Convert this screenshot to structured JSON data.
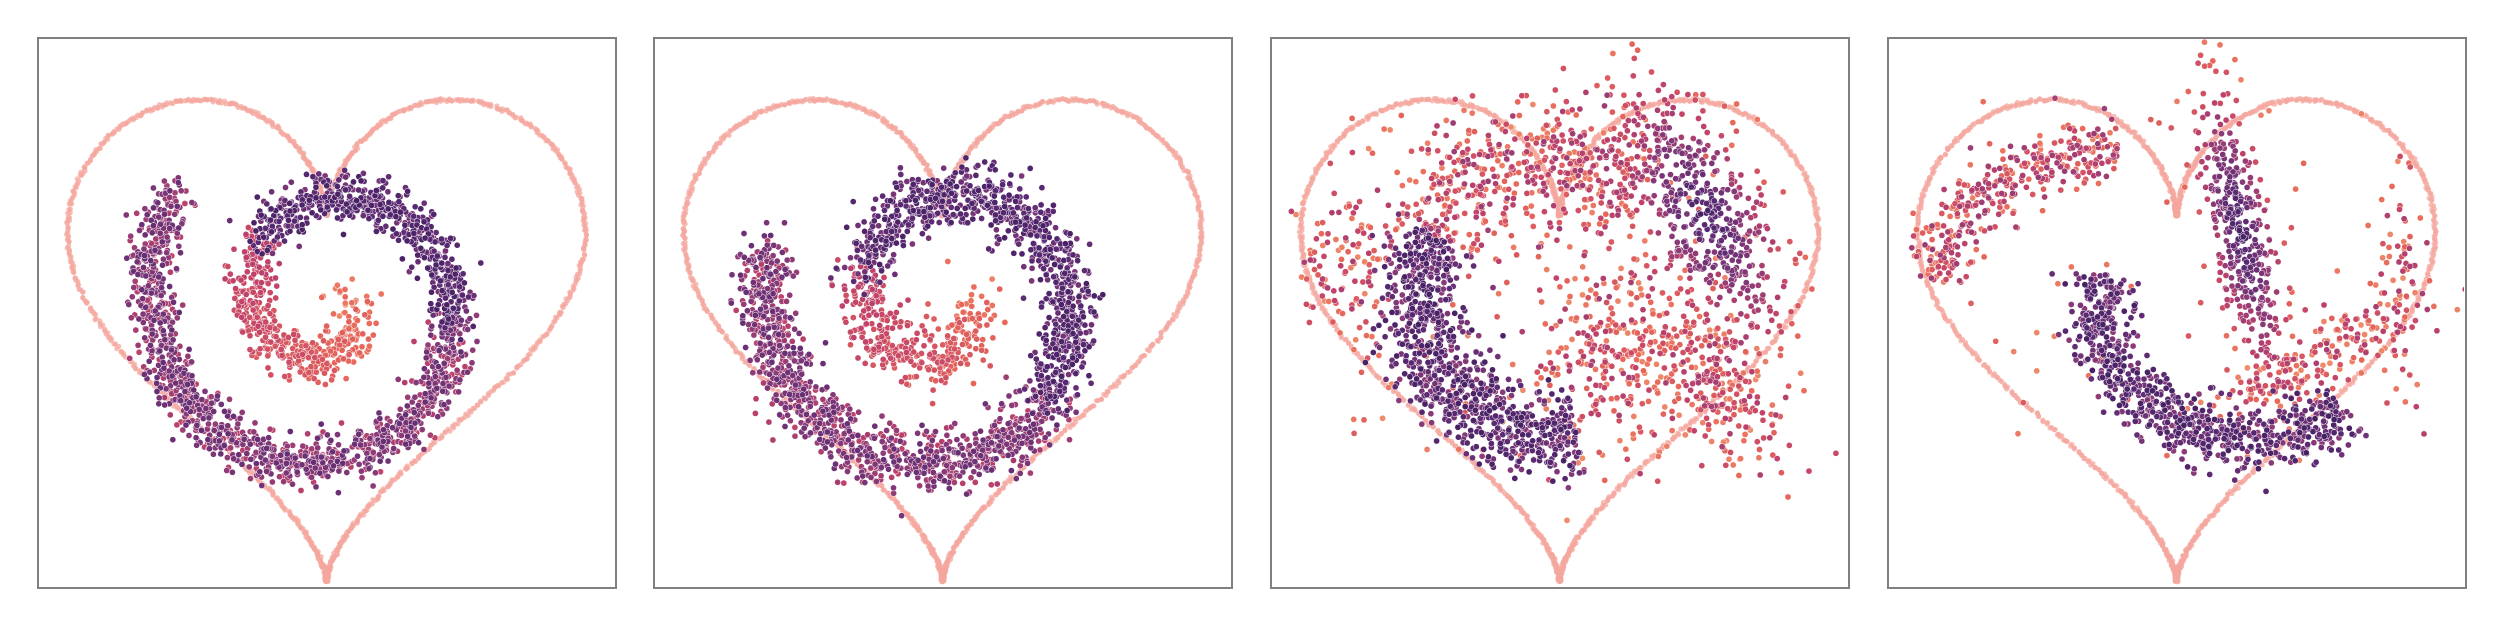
{
  "chart_data": [
    {
      "type": "scatter",
      "grid": false,
      "legend": "none",
      "xlim": [
        -1.8,
        1.8
      ],
      "ylim": [
        -1.6,
        1.4
      ],
      "boundary": {
        "shape": "heart",
        "color": "#f4a79d"
      },
      "colormap": [
        "#3b1a5a",
        "#5a2a73",
        "#8a3a78",
        "#c24269",
        "#e8685a",
        "#f09a72"
      ],
      "series": [
        {
          "kind": "spiral",
          "theta_start": 0.9,
          "theta_end": 11.6,
          "radius_start": 0.12,
          "radius_end": 1.48,
          "rotation": -1.57,
          "spread": 0.07,
          "dense_range": [
            5.5,
            8.0
          ],
          "count": 2400
        }
      ]
    },
    {
      "type": "scatter",
      "grid": false,
      "legend": "none",
      "xlim": [
        -1.8,
        1.8
      ],
      "ylim": [
        -1.6,
        1.4
      ],
      "boundary": {
        "shape": "heart",
        "color": "#f4a79d"
      },
      "colormap": [
        "#3b1a5a",
        "#5a2a73",
        "#8a3a78",
        "#c24269",
        "#e8685a",
        "#f09a72"
      ],
      "series": [
        {
          "kind": "spiral",
          "theta_start": 1.0,
          "theta_end": 11.2,
          "radius_start": 0.15,
          "radius_end": 1.46,
          "rotation": -1.5,
          "spread": 0.085,
          "dense_range": [
            5.0,
            8.5
          ],
          "count": 2400
        }
      ]
    },
    {
      "type": "scatter",
      "grid": false,
      "legend": "none",
      "xlim": [
        -1.8,
        1.8
      ],
      "ylim": [
        -1.6,
        1.4
      ],
      "boundary": {
        "shape": "heart",
        "color": "#f4a79d"
      },
      "colormap": [
        "#3b1a5a",
        "#5a2a73",
        "#8a3a78",
        "#c24269",
        "#e8685a",
        "#f09a72"
      ],
      "series": [
        {
          "kind": "arc",
          "cx": -0.05,
          "cy": -0.05,
          "r": 0.85,
          "a_start": 2.6,
          "a_end": 4.9,
          "spread": 0.14,
          "count": 900,
          "dense": true
        },
        {
          "kind": "arc",
          "cx": -0.05,
          "cy": -0.05,
          "r": 0.95,
          "a_start": 0.9,
          "a_end": 2.6,
          "spread": 0.2,
          "count": 500,
          "dense": false
        },
        {
          "kind": "blob",
          "cx": 0.9,
          "cy": 0.45,
          "sx": 0.18,
          "sy": 0.38,
          "angle": 0.55,
          "count": 500,
          "dense": true
        },
        {
          "kind": "blob",
          "cx": 0.95,
          "cy": -0.45,
          "sx": 0.15,
          "sy": 0.3,
          "angle": 0.7,
          "count": 260,
          "dense": false
        },
        {
          "kind": "blob",
          "cx": 0.35,
          "cy": -0.3,
          "sx": 0.25,
          "sy": 0.3,
          "angle": 0.0,
          "count": 260,
          "dense": false
        },
        {
          "kind": "blob",
          "cx": -1.3,
          "cy": 0.15,
          "sx": 0.18,
          "sy": 0.25,
          "angle": 0.0,
          "count": 120,
          "dense": false
        },
        {
          "kind": "scatter",
          "count": 160
        }
      ]
    },
    {
      "type": "scatter",
      "grid": false,
      "legend": "none",
      "xlim": [
        -1.8,
        1.8
      ],
      "ylim": [
        -1.6,
        1.4
      ],
      "boundary": {
        "shape": "heart",
        "color": "#f4a79d"
      },
      "colormap": [
        "#3b1a5a",
        "#5a2a73",
        "#8a3a78",
        "#c24269",
        "#e8685a",
        "#f09a72"
      ],
      "series": [
        {
          "kind": "arc",
          "cx": -0.45,
          "cy": -0.2,
          "r": 1.15,
          "a_start": 1.5,
          "a_end": 2.85,
          "spread": 0.1,
          "count": 380,
          "dense": false
        },
        {
          "kind": "blob",
          "cx": 0.4,
          "cy": 0.35,
          "sx": 0.1,
          "sy": 0.4,
          "angle": 0.25,
          "count": 420,
          "dense": true
        },
        {
          "kind": "arc",
          "cx": 0.45,
          "cy": 0.0,
          "r": 0.95,
          "a_start": 3.0,
          "a_end": 5.4,
          "spread": 0.1,
          "count": 800,
          "dense": true
        },
        {
          "kind": "blob",
          "cx": 0.9,
          "cy": -0.35,
          "sx": 0.35,
          "sy": 0.1,
          "angle": 0.45,
          "count": 200,
          "dense": false
        },
        {
          "kind": "blob",
          "cx": 1.4,
          "cy": 0.0,
          "sx": 0.08,
          "sy": 0.35,
          "angle": 0.0,
          "count": 80,
          "dense": false
        },
        {
          "kind": "scatter",
          "count": 40
        }
      ]
    }
  ]
}
